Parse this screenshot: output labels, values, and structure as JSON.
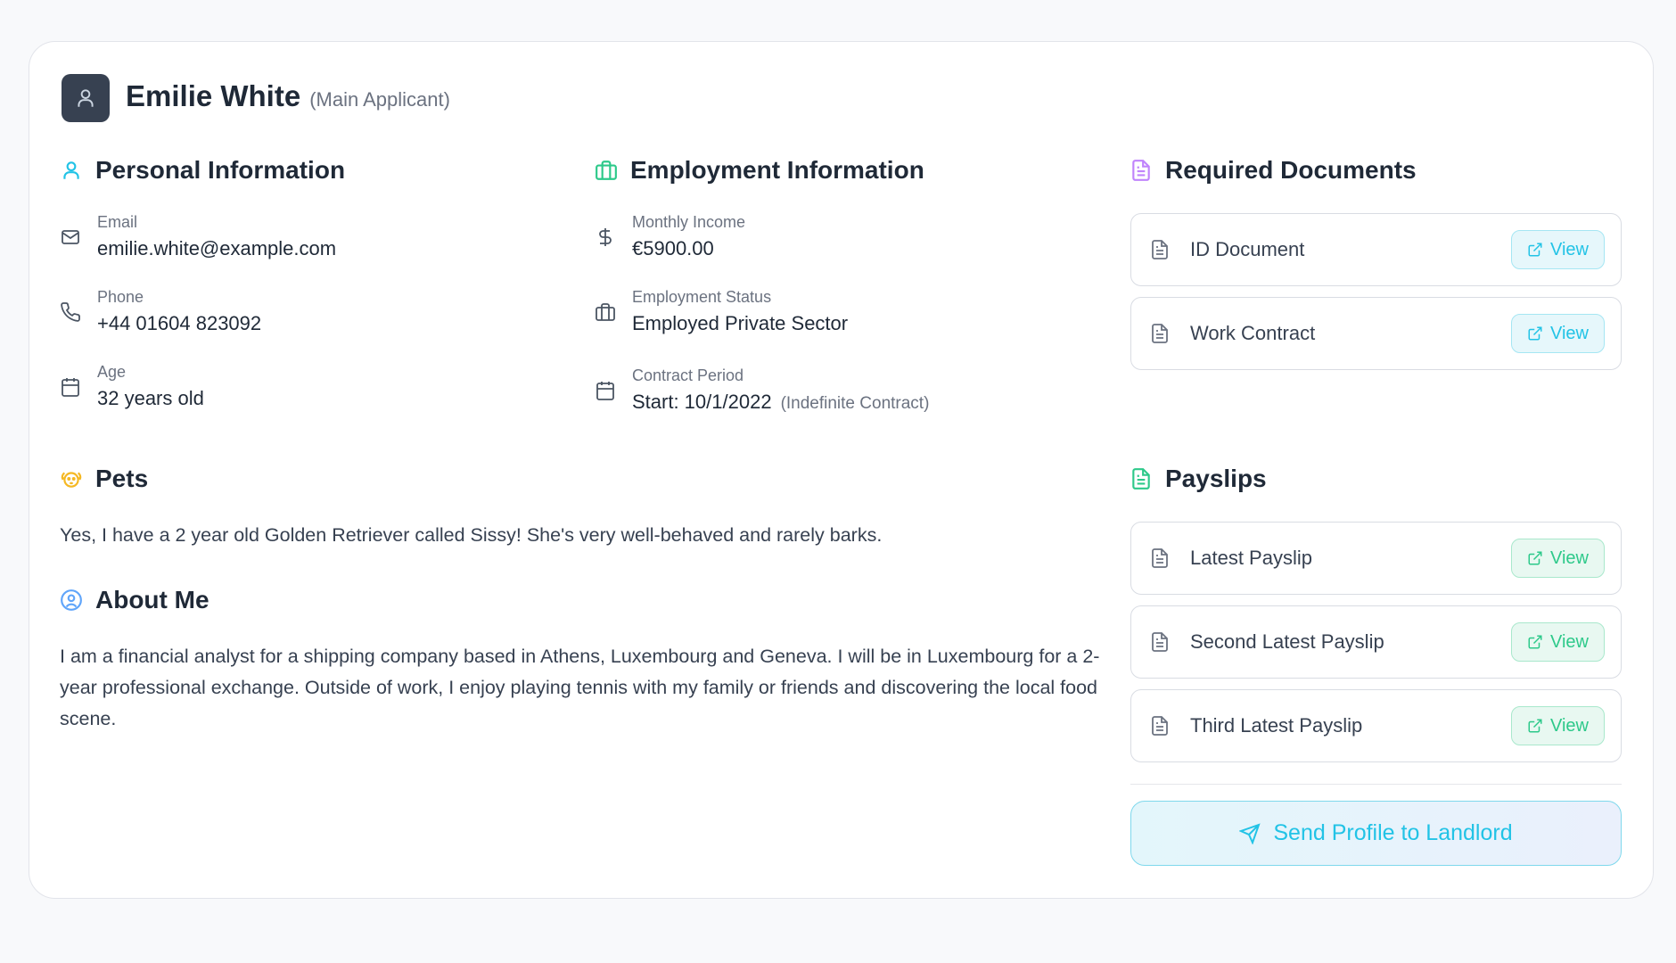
{
  "applicant": {
    "name": "Emilie White",
    "role": "(Main Applicant)"
  },
  "personal": {
    "title": "Personal Information",
    "fields": [
      {
        "label": "Email",
        "value": "emilie.white@example.com",
        "icon": "mail-icon"
      },
      {
        "label": "Phone",
        "value": "+44 01604 823092",
        "icon": "phone-icon"
      },
      {
        "label": "Age",
        "value": "32 years old",
        "icon": "calendar-icon"
      }
    ]
  },
  "employment": {
    "title": "Employment Information",
    "fields": [
      {
        "label": "Monthly Income",
        "value": "€5900.00",
        "icon": "dollar-icon"
      },
      {
        "label": "Employment Status",
        "value": "Employed Private Sector",
        "icon": "briefcase-icon"
      },
      {
        "label": "Contract Period",
        "value": "Start: 10/1/2022",
        "note": "(Indefinite Contract)",
        "icon": "calendar-icon"
      }
    ]
  },
  "pets": {
    "title": "Pets",
    "text": "Yes, I have a 2 year old Golden Retriever called Sissy! She's very well-behaved and rarely barks."
  },
  "about": {
    "title": "About Me",
    "text": "I am a financial analyst for a shipping company based in Athens, Luxembourg and Geneva. I will be in Luxembourg for a 2-year professional exchange. Outside of work, I enjoy playing tennis with my family or friends and discovering the local food scene."
  },
  "documents": {
    "title": "Required Documents",
    "items": [
      {
        "name": "ID Document",
        "action": "View"
      },
      {
        "name": "Work Contract",
        "action": "View"
      }
    ]
  },
  "payslips": {
    "title": "Payslips",
    "items": [
      {
        "name": "Latest Payslip",
        "action": "View"
      },
      {
        "name": "Second Latest Payslip",
        "action": "View"
      },
      {
        "name": "Third Latest Payslip",
        "action": "View"
      }
    ]
  },
  "send_button": "Send Profile to Landlord",
  "colors": {
    "cyan": "#22c3e6",
    "green": "#2dc98a",
    "purple": "#c084fc",
    "amber": "#f5b823",
    "blue": "#60a5fa",
    "avatar": "#374151"
  }
}
